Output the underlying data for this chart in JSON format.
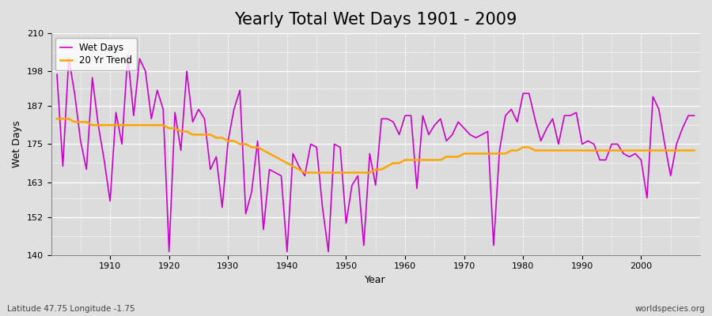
{
  "title": "Yearly Total Wet Days 1901 - 2009",
  "xlabel": "Year",
  "ylabel": "Wet Days",
  "subtitle": "Latitude 47.75 Longitude -1.75",
  "watermark": "worldspecies.org",
  "years": [
    1901,
    1902,
    1903,
    1904,
    1905,
    1906,
    1907,
    1908,
    1909,
    1910,
    1911,
    1912,
    1913,
    1914,
    1915,
    1916,
    1917,
    1918,
    1919,
    1920,
    1921,
    1922,
    1923,
    1924,
    1925,
    1926,
    1927,
    1928,
    1929,
    1930,
    1931,
    1932,
    1933,
    1934,
    1935,
    1936,
    1937,
    1938,
    1939,
    1940,
    1941,
    1942,
    1943,
    1944,
    1945,
    1946,
    1947,
    1948,
    1949,
    1950,
    1951,
    1952,
    1953,
    1954,
    1955,
    1956,
    1957,
    1958,
    1959,
    1960,
    1961,
    1962,
    1963,
    1964,
    1965,
    1966,
    1967,
    1968,
    1969,
    1970,
    1971,
    1972,
    1973,
    1974,
    1975,
    1976,
    1977,
    1978,
    1979,
    1980,
    1981,
    1982,
    1983,
    1984,
    1985,
    1986,
    1987,
    1988,
    1989,
    1990,
    1991,
    1992,
    1993,
    1994,
    1995,
    1996,
    1997,
    1998,
    1999,
    2000,
    2001,
    2002,
    2003,
    2004,
    2005,
    2006,
    2007,
    2008,
    2009
  ],
  "wet_days": [
    197,
    168,
    202,
    191,
    176,
    167,
    196,
    181,
    170,
    157,
    185,
    175,
    203,
    184,
    202,
    198,
    183,
    192,
    186,
    141,
    185,
    173,
    198,
    182,
    186,
    183,
    167,
    171,
    155,
    176,
    186,
    192,
    153,
    160,
    176,
    148,
    167,
    166,
    165,
    141,
    172,
    168,
    165,
    175,
    174,
    155,
    141,
    175,
    174,
    150,
    162,
    165,
    143,
    172,
    162,
    183,
    183,
    182,
    178,
    184,
    184,
    161,
    184,
    178,
    181,
    183,
    176,
    178,
    182,
    180,
    178,
    177,
    178,
    179,
    143,
    173,
    184,
    186,
    182,
    191,
    191,
    183,
    176,
    180,
    183,
    175,
    184,
    184,
    185,
    175,
    176,
    175,
    170,
    170,
    175,
    175,
    172,
    171,
    172,
    170,
    158,
    190,
    186,
    175,
    165,
    175,
    180,
    184,
    184
  ],
  "trend": [
    183,
    183,
    183,
    182,
    182,
    182,
    181,
    181,
    181,
    181,
    181,
    181,
    181,
    181,
    181,
    181,
    181,
    181,
    181,
    180,
    180,
    179,
    179,
    178,
    178,
    178,
    178,
    177,
    177,
    176,
    176,
    175,
    175,
    174,
    174,
    173,
    172,
    171,
    170,
    169,
    168,
    167,
    166,
    166,
    166,
    166,
    166,
    166,
    166,
    166,
    166,
    166,
    166,
    166,
    167,
    167,
    168,
    169,
    169,
    170,
    170,
    170,
    170,
    170,
    170,
    170,
    171,
    171,
    171,
    172,
    172,
    172,
    172,
    172,
    172,
    172,
    172,
    173,
    173,
    174,
    174,
    173,
    173,
    173,
    173,
    173,
    173,
    173,
    173,
    173,
    173,
    173,
    173,
    173,
    173,
    173,
    173,
    173,
    173,
    173,
    173,
    173,
    173,
    173,
    173,
    173,
    173,
    173,
    173
  ],
  "wet_days_color": "#CC00CC",
  "trend_color": "#FFA500",
  "background_color": "#E0E0E0",
  "plot_bg_color": "#DCDCDC",
  "grid_color": "#FFFFFF",
  "ylim": [
    140,
    210
  ],
  "yticks": [
    140,
    152,
    163,
    175,
    187,
    198,
    210
  ],
  "xlim": [
    1901,
    2009
  ],
  "xticks": [
    1910,
    1920,
    1930,
    1940,
    1950,
    1960,
    1970,
    1980,
    1990,
    2000
  ],
  "legend_wet_label": "Wet Days",
  "legend_trend_label": "20 Yr Trend",
  "title_fontsize": 15,
  "axis_label_fontsize": 9,
  "tick_fontsize": 8
}
